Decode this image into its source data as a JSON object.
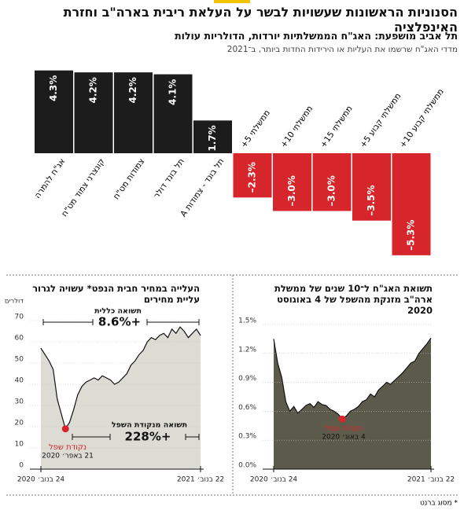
{
  "title": "הסנוניות הראשונות שעשויות לבשר על העלאת ריבית בארה\"ב וחזרת האינפלציה",
  "source": "* מסוג ברנט",
  "chart_data": [
    {
      "type": "bar",
      "title": "תל אביב מושפעת: האג\"ח הממשלתיות יורדות, הדולריות עולות",
      "subtitle": "מדדי האג\"ח שרשמו את העליות או הירידות החדות ביותר, ב־2021",
      "categories": [
        "אג\"ח להמרה",
        "קונצרני צמוד מט\"ח",
        "צמודות מט\"ח",
        "תל בונד דולר",
        "תל בונד - צמודות A",
        "ממשלתי 5+",
        "ממשלתי 10+",
        "ממשלתי 15+",
        "ממשלתי קבוע 5+",
        "ממשלתי קבוע 10+"
      ],
      "values": [
        4.3,
        4.2,
        4.2,
        4.1,
        1.7,
        -2.3,
        -3.0,
        -3.0,
        -3.5,
        -5.3
      ],
      "value_labels": [
        "4.3%",
        "4.2%",
        "4.2%",
        "4.1%",
        "1.7%",
        "–2.3%",
        "–3.0%",
        "–3.0%",
        "–3.5%",
        "–5.3%"
      ],
      "colors": [
        "#1c1c1c",
        "#1c1c1c",
        "#1c1c1c",
        "#1c1c1c",
        "#1c1c1c",
        "#d6262b",
        "#d6262b",
        "#d6262b",
        "#d6262b",
        "#d6262b"
      ]
    },
    {
      "type": "area",
      "title": "העלייה במחיר חבית הנפט* עשויה לגרור עליית מחירים",
      "unit": "דולרים",
      "categories": [
        "24 בנוב׳ 2020",
        null,
        null,
        null,
        null,
        null,
        null,
        null,
        null,
        null,
        null,
        null,
        null,
        null,
        null,
        null,
        null,
        null,
        null,
        null,
        null,
        null,
        null,
        null,
        null,
        null,
        null,
        null,
        null,
        null,
        null,
        null,
        null,
        null,
        null,
        null,
        null,
        null,
        null,
        "22 בנוב׳ 2021"
      ],
      "values": [
        57,
        54,
        51,
        47,
        33,
        26,
        19,
        22,
        28,
        35,
        39,
        41,
        42,
        43,
        42,
        44,
        43,
        42,
        40,
        41,
        43,
        45,
        49,
        51,
        54,
        56,
        60,
        62,
        61,
        63,
        64,
        62,
        66,
        64,
        67,
        65,
        62,
        64,
        66,
        63
      ],
      "color": "#111111",
      "fill": "#dcdcd4",
      "ylim": [
        0,
        75
      ],
      "yticks": [
        0,
        10,
        20,
        30,
        40,
        50,
        60,
        70
      ],
      "grid": true,
      "annotations": [
        "תשואה כללית",
        "+8.6%",
        "תשואה מנקודת השפל",
        "+228%",
        "נקודת שפל",
        "21 באפר׳ 2020"
      ]
    },
    {
      "type": "area",
      "title": "תשואת האג\"ח ל־10 שנים של ממשלת ארה\"ב מזנקת מהשפל של 4 באוגוסט 2020",
      "categories": [
        "24 בנוב׳ 2020",
        null,
        null,
        null,
        null,
        null,
        null,
        null,
        null,
        null,
        null,
        null,
        null,
        null,
        null,
        null,
        null,
        null,
        null,
        null,
        null,
        null,
        null,
        null,
        null,
        null,
        null,
        null,
        null,
        null,
        null,
        null,
        null,
        null,
        null,
        null,
        null,
        null,
        null,
        "22 בנוב׳ 2021"
      ],
      "values": [
        1.35,
        1.1,
        0.95,
        0.7,
        0.6,
        0.65,
        0.58,
        0.62,
        0.66,
        0.68,
        0.64,
        0.7,
        0.67,
        0.66,
        0.62,
        0.6,
        0.57,
        0.52,
        0.55,
        0.6,
        0.62,
        0.65,
        0.7,
        0.72,
        0.78,
        0.75,
        0.82,
        0.86,
        0.9,
        0.88,
        0.92,
        0.96,
        1.0,
        1.05,
        1.1,
        1.12,
        1.2,
        1.25,
        1.3,
        1.36
      ],
      "color": "#111111",
      "fill": "#5c5b4b",
      "ylim": [
        0,
        1.6
      ],
      "yticks": [
        {
          "value": 0,
          "label": "0.0%"
        },
        {
          "value": 0.3,
          "label": "0.3%"
        },
        {
          "value": 0.6,
          "label": "0.6%"
        },
        {
          "value": 0.9,
          "label": "0.9%"
        },
        {
          "value": 1.2,
          "label": "1.2%"
        },
        {
          "value": 1.5,
          "label": "1.5%"
        }
      ],
      "grid": true,
      "annotations": [
        "נקודת שפל",
        "4 באוג׳ 2020"
      ]
    }
  ]
}
